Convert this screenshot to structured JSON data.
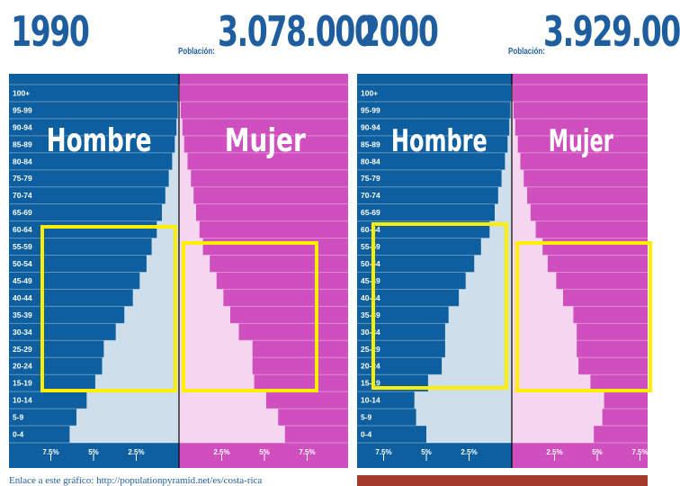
{
  "chart_data": [
    {
      "type": "population-pyramid",
      "year": "1990",
      "population_label": "Población:",
      "population_value": "3.078.000",
      "left_label": "Hombre",
      "right_label": "Mujer",
      "age_groups": [
        "0-4",
        "5-9",
        "10-14",
        "15-19",
        "20-24",
        "25-29",
        "30-34",
        "35-39",
        "40-44",
        "45-49",
        "50-54",
        "55-59",
        "60-64",
        "65-69",
        "70-74",
        "75-79",
        "80-84",
        "85-89",
        "90-94",
        "95-99",
        "100+"
      ],
      "x_ticks_left": [
        "7.5%",
        "5%",
        "2.5%"
      ],
      "x_ticks_right": [
        "2.5%",
        "5%",
        "7.5%"
      ],
      "xlim": [
        -9,
        9
      ],
      "series": [
        {
          "name": "Hombre",
          "values": [
            6.4,
            6.0,
            5.4,
            4.9,
            4.5,
            4.4,
            3.7,
            3.2,
            2.7,
            2.3,
            1.9,
            1.6,
            1.3,
            1.0,
            0.8,
            0.6,
            0.4,
            0.25,
            0.15,
            0.08,
            0.04
          ]
        },
        {
          "name": "Mujer",
          "values": [
            6.2,
            5.8,
            5.1,
            4.4,
            4.3,
            4.3,
            3.5,
            3.0,
            2.6,
            2.2,
            1.8,
            1.4,
            1.2,
            1.0,
            0.85,
            0.7,
            0.5,
            0.3,
            0.2,
            0.1,
            0.05
          ]
        }
      ]
    },
    {
      "type": "population-pyramid",
      "year": "2000",
      "population_label": "Población:",
      "population_value": "3.929.00",
      "left_label": "Hombre",
      "right_label": "Mujer",
      "age_groups": [
        "0-4",
        "5-9",
        "10-14",
        "15-19",
        "20-24",
        "25-29",
        "30-34",
        "35-39",
        "40-44",
        "45-49",
        "50-54",
        "55-59",
        "60-64",
        "65-69",
        "70-74",
        "75-79",
        "80-84",
        "85-89",
        "90-94",
        "95-99",
        "100+"
      ],
      "x_ticks_left": [
        "7.5%",
        "5%",
        "2.5%"
      ],
      "x_ticks_right": [
        "2.5%",
        "5%",
        "7.5%"
      ],
      "xlim": [
        -9,
        9
      ],
      "series": [
        {
          "name": "Hombre",
          "values": [
            5.0,
            5.6,
            5.7,
            4.9,
            4.1,
            3.9,
            3.9,
            3.7,
            3.1,
            2.7,
            2.2,
            1.8,
            1.3,
            1.0,
            0.8,
            0.6,
            0.4,
            0.25,
            0.15,
            0.08,
            0.04
          ]
        },
        {
          "name": "Mujer",
          "values": [
            4.8,
            5.3,
            5.4,
            4.6,
            3.9,
            3.8,
            3.8,
            3.6,
            3.0,
            2.6,
            2.1,
            1.8,
            1.4,
            1.1,
            0.9,
            0.7,
            0.5,
            0.35,
            0.2,
            0.1,
            0.05
          ]
        }
      ]
    }
  ],
  "footer": {
    "text": "Enlace a este gráfico: http://populationpyramid.net/es/costa-rica"
  },
  "colors": {
    "male_bg": "#0d5fa0",
    "female_bg": "#d04fbf",
    "male_fill": "#cfdeeb",
    "female_fill": "#f4d6ee",
    "highlight": "#ffee00",
    "title": "#1f5e9e"
  }
}
